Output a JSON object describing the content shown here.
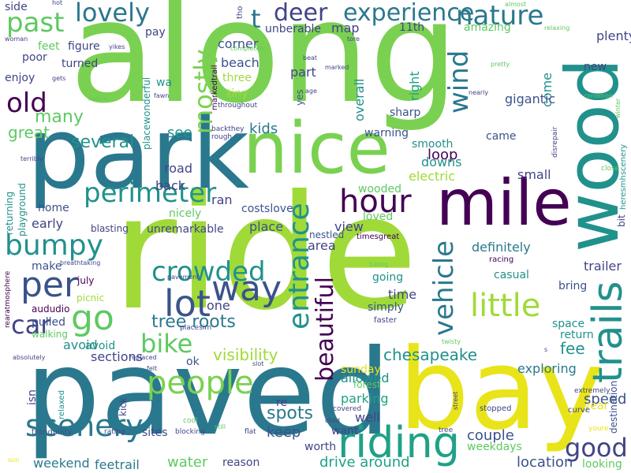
{
  "palette": {
    "background": "#ffffff",
    "light_green": "#5ec962",
    "lime": "#7ad151",
    "yellow_green": "#a0da39",
    "yellow": "#e8e419",
    "teal": "#21918c",
    "blue_teal": "#2a788e",
    "slate": "#3b528b",
    "indigo": "#414487",
    "purple": "#440154",
    "dark_purple": "#482878",
    "sea_green": "#22a884",
    "aqua": "#1fa187"
  },
  "words": [
    "along",
    "ride",
    "paved",
    "park",
    "bay",
    "nice",
    "mile",
    "wood",
    "trails",
    "riding",
    "people",
    "scenery",
    "hour",
    "perimeter",
    "bumpy",
    "per",
    "way",
    "lot",
    "crowded",
    "entrance",
    "beautiful",
    "vehicle",
    "little",
    "go",
    "car",
    "bike",
    "tree roots",
    "good",
    "deer",
    "experience",
    "nature",
    "lovely",
    "past",
    "old",
    "mostly",
    "wind",
    "t",
    "many",
    "great",
    "several",
    "see",
    "kids",
    "loop",
    "chesapeake",
    "visibility",
    "sections",
    "avoid",
    "fee",
    "trailer",
    "allowed",
    "sunday",
    "parking",
    "exploring",
    "spots",
    "keep",
    "drive around",
    "location",
    "couple",
    "speed",
    "year",
    "water",
    "weekend",
    "feetrail",
    "unberable",
    "map",
    "amazing",
    "11th",
    "plenty",
    "beach",
    "corner",
    "three",
    "part",
    "overall",
    "right",
    "come",
    "new",
    "gigantic",
    "sharp",
    "came",
    "warning",
    "smooth",
    "downs",
    "electric",
    "small",
    "wooded",
    "definitely",
    "loved",
    "view",
    "area",
    "nestled",
    "timesgreat",
    "place",
    "unremarkable",
    "costslove",
    "ran",
    "nicely",
    "road",
    "back",
    "early",
    "home",
    "blasting",
    "playground",
    "returning",
    "make",
    "pulled",
    "walking",
    "aududio",
    "picnic",
    "one",
    "july",
    "casual",
    "bring",
    "simply",
    "time",
    "going",
    "racing",
    "space",
    "return",
    "destination",
    "bit",
    "heresmhscenery",
    "winter",
    "condition",
    "close",
    "relaxing",
    "almost",
    "nearly",
    "pretty",
    "beat",
    "tore",
    "marked",
    "age",
    "yes",
    "markedtrail",
    "throughout",
    "rough",
    "backthey",
    "placewonderful",
    "fawn",
    "wa",
    "tiny",
    "completely",
    "tho",
    "pay",
    "figure",
    "yikes",
    "hot",
    "woman",
    "side",
    "feet",
    "poor",
    "turned",
    "enjoy",
    "gets",
    "notice",
    "terribly",
    "rearatmosphere",
    "breathtaking",
    "pavement",
    "absolutely",
    "placesim",
    "faster",
    "twisty",
    "replaced",
    "felt",
    "ok",
    "slot",
    "isn",
    "relaxed",
    "kick",
    "tranquility",
    "rating",
    "sites",
    "blocking",
    "cool",
    "flat",
    "still",
    "reason",
    "worth",
    "covered",
    "want",
    "child",
    "tree",
    "street",
    "stopped",
    "curve",
    "extremely",
    "youre",
    "looking",
    "disrepair",
    "biking",
    "s",
    "re",
    "well",
    "forest",
    "weekdays",
    "sun",
    "avoid"
  ]
}
